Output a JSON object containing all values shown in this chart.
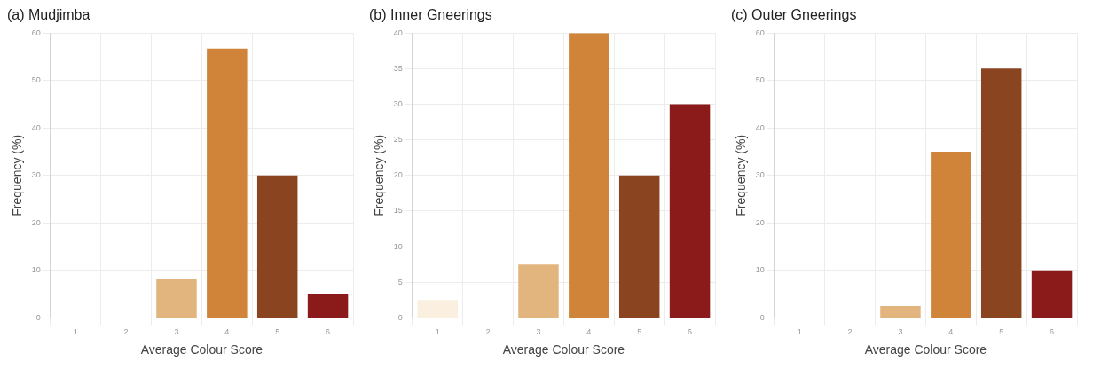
{
  "chart_data": [
    {
      "type": "bar",
      "title": "(a) Mudjimba",
      "xlabel": "Average Colour Score",
      "ylabel": "Frequency (%)",
      "categories": [
        "1",
        "2",
        "3",
        "4",
        "5",
        "6"
      ],
      "values": [
        0,
        0,
        8.3,
        56.7,
        30,
        5
      ],
      "colors": [
        "#fbefdf",
        "#f3d9b5",
        "#e3b57e",
        "#cf843a",
        "#8b4420",
        "#8b1a1a"
      ],
      "ylim": [
        0,
        60
      ],
      "yticks": [
        0,
        10,
        20,
        30,
        40,
        50,
        60
      ],
      "grid": true
    },
    {
      "type": "bar",
      "title": "(b) Inner Gneerings",
      "xlabel": "Average Colour Score",
      "ylabel": "Frequency (%)",
      "categories": [
        "1",
        "2",
        "3",
        "4",
        "5",
        "6"
      ],
      "values": [
        2.5,
        0,
        7.5,
        40,
        20,
        30
      ],
      "colors": [
        "#fbefdf",
        "#f3d9b5",
        "#e3b57e",
        "#cf843a",
        "#8b4420",
        "#8b1a1a"
      ],
      "ylim": [
        0,
        40
      ],
      "yticks": [
        0,
        5,
        10,
        15,
        20,
        25,
        30,
        35,
        40
      ],
      "grid": true
    },
    {
      "type": "bar",
      "title": "(c) Outer Gneerings",
      "xlabel": "Average Colour Score",
      "ylabel": "Frequency (%)",
      "categories": [
        "1",
        "2",
        "3",
        "4",
        "5",
        "6"
      ],
      "values": [
        0,
        0,
        2.5,
        35,
        52.5,
        10
      ],
      "colors": [
        "#fbefdf",
        "#f3d9b5",
        "#e3b57e",
        "#cf843a",
        "#8b4420",
        "#8b1a1a"
      ],
      "ylim": [
        0,
        60
      ],
      "yticks": [
        0,
        10,
        20,
        30,
        40,
        50,
        60
      ],
      "grid": true
    }
  ]
}
